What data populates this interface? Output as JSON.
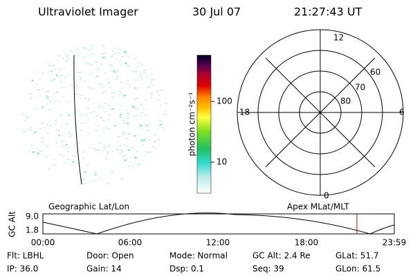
{
  "header": {
    "instrument": "Ultraviolet Imager",
    "date": "30 Jul 07",
    "time": "21:27:43 UT"
  },
  "colorbar": {
    "label": "photon cm⁻²s⁻¹",
    "ticks": [
      "100",
      "10"
    ]
  },
  "polar": {
    "lat_labels": [
      "60",
      "70",
      "80"
    ],
    "mlt_top": "12",
    "mlt_bottom": "0",
    "mlt_left": "18",
    "mlt_right": "6"
  },
  "timeline": {
    "left_label": "Geographic Lat/Lon",
    "right_label": "Apex MLat/MLT",
    "y_label": "GC Alt",
    "y_ticks": [
      "9.0",
      "1.8"
    ],
    "x_ticks": [
      "00:00",
      "06:00",
      "12:00",
      "18:00",
      "23:59"
    ]
  },
  "status": {
    "rows": [
      [
        "Flt: LBHL",
        "Door: Open",
        "Mode: Normal",
        "GC Alt: 2.4 Re",
        "GLat: 51.7"
      ],
      [
        "IP: 36.0",
        "Gain: 14",
        "Dsp:  0.1",
        "Seq: 39",
        "GLon:  61.5"
      ]
    ]
  }
}
